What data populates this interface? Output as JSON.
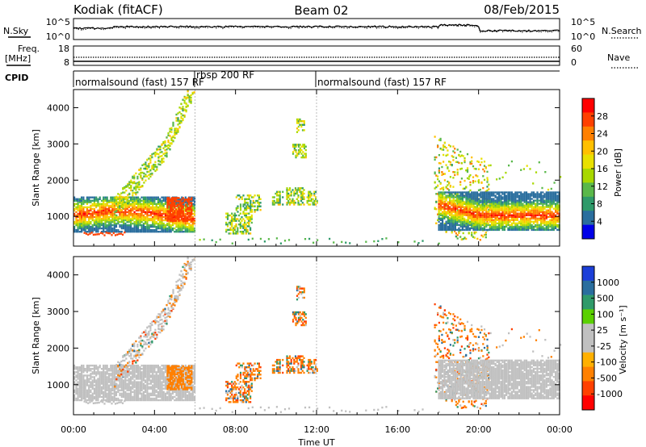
{
  "header": {
    "station": "Kodiak (fitACF)",
    "beam": "Beam 02",
    "date": "08/Feb/2015"
  },
  "strip": {
    "nsky_label": "N.Sky",
    "nsearch_label": "N.Search",
    "freq_label_1": "Freq.",
    "freq_label_2": "[MHz]",
    "nave_label": "Nave",
    "cpid_label": "CPID",
    "noise_ticks_left": [
      "10^5",
      "10^0"
    ],
    "noise_ticks_right": [
      "10^5",
      "10^0"
    ],
    "freq_ticks": [
      "18",
      "8"
    ],
    "nave_ticks": [
      "60",
      "0"
    ],
    "cpid_segments": [
      {
        "label": "normalsound (fast) 157 RF",
        "start_h": 0.0,
        "end_h": 6.0
      },
      {
        "label": "rbsp 200 RF",
        "start_h": 6.0,
        "end_h": 12.0
      },
      {
        "label": "normalsound (fast) 157 RF",
        "start_h": 12.0,
        "end_h": 24.0
      }
    ]
  },
  "power_panel": {
    "ylabel": "Slant Range [km]",
    "cbar_label": "Power [dB]",
    "cbar_ticks": [
      "28",
      "24",
      "20",
      "16",
      "12",
      "8",
      "4"
    ]
  },
  "velocity_panel": {
    "ylabel": "Slant Range [km]",
    "cbar_label": "Velocity [m s⁻¹]",
    "cbar_ticks": [
      "1000",
      "500",
      "100",
      "25",
      "-25",
      "-100",
      "-500",
      "-1000"
    ]
  },
  "xaxis": {
    "label": "Time UT",
    "ticks": [
      "00:00",
      "04:00",
      "08:00",
      "12:00",
      "16:00",
      "20:00",
      "00:00"
    ]
  },
  "colors": {
    "power_scale": [
      "#ff0000",
      "#ff4000",
      "#ff8000",
      "#ffc000",
      "#e8e000",
      "#a8d800",
      "#5ab84a",
      "#2f9a6a",
      "#2a6e9e",
      "#0000e8"
    ],
    "velocity_scale": [
      "#1c3fd8",
      "#2a6e9e",
      "#2f9a6a",
      "#5ad000",
      "#c0c0c0",
      "#c0c0c0",
      "#ffb000",
      "#ff8000",
      "#ff4000",
      "#ff0000"
    ]
  },
  "chart_data": [
    {
      "type": "heatmap",
      "title": "Power [dB]",
      "xlabel": "Time UT",
      "ylabel": "Slant Range [km]",
      "xlim": [
        0,
        24
      ],
      "ylim": [
        180,
        4500
      ],
      "yticks": [
        1000,
        2000,
        3000,
        4000
      ],
      "clim": [
        0,
        30
      ],
      "cbar_ticks": [
        28,
        24,
        20,
        16,
        12,
        8,
        4
      ],
      "features": [
        {
          "name": "dense band early",
          "t_range": [
            0.0,
            6.0
          ],
          "range_km": [
            500,
            1400
          ],
          "peak_db": 28
        },
        {
          "name": "rising arc",
          "t_range": [
            2.0,
            6.5
          ],
          "range_km": [
            1000,
            4400
          ],
          "peak_db": 20
        },
        {
          "name": "patches midday",
          "t_range": [
            7.5,
            12.0
          ],
          "range_km": [
            600,
            3700
          ],
          "peak_db": 18
        },
        {
          "name": "evening arc",
          "t_range": [
            17.8,
            20.0
          ],
          "range_km": [
            600,
            3200
          ],
          "peak_db": 24
        },
        {
          "name": "dense band late",
          "t_range": [
            18.0,
            24.0
          ],
          "range_km": [
            600,
            1500
          ],
          "peak_db": 28
        }
      ]
    },
    {
      "type": "heatmap",
      "title": "Velocity [m s⁻¹]",
      "xlabel": "Time UT",
      "ylabel": "Slant Range [km]",
      "xlim": [
        0,
        24
      ],
      "ylim": [
        180,
        4500
      ],
      "yticks": [
        1000,
        2000,
        3000,
        4000
      ],
      "cbar_ticks": [
        1000,
        500,
        100,
        25,
        -25,
        -100,
        -500,
        -1000
      ],
      "features": [
        {
          "name": "ground scatter early",
          "t_range": [
            0.0,
            6.0
          ],
          "range_km": [
            600,
            1700
          ],
          "velocity": 0
        },
        {
          "name": "negative patch",
          "t_range": [
            5.0,
            5.8
          ],
          "range_km": [
            800,
            1400
          ],
          "velocity": -100
        },
        {
          "name": "patches midday",
          "t_range": [
            7.5,
            12.0
          ],
          "range_km": [
            500,
            3700
          ],
          "velocity": -100
        },
        {
          "name": "evening arc",
          "t_range": [
            17.8,
            21.0
          ],
          "range_km": [
            700,
            3100
          ],
          "velocity": -100
        },
        {
          "name": "ground scatter late",
          "t_range": [
            18.0,
            24.0
          ],
          "range_km": [
            700,
            1700
          ],
          "velocity": 0
        }
      ]
    }
  ]
}
